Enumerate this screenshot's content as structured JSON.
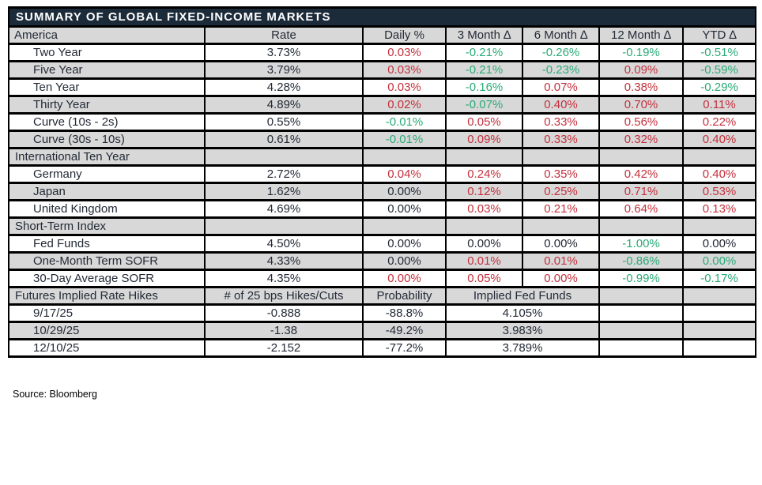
{
  "title": "SUMMARY OF GLOBAL FIXED-INCOME MARKETS",
  "source_note": "Source: Bloomberg",
  "colors": {
    "title_bar_bg": "#1c2b3a",
    "title_text": "#ffffff",
    "row_gray": "#d8d8d8",
    "border": "#000000",
    "text_black": "#232a36",
    "negative_green": "#2aab77",
    "positive_red": "#c5303c"
  },
  "header": [
    "America",
    "Rate",
    "Daily %",
    "3 Month ∆",
    "6 Month ∆",
    "12 Month ∆",
    "YTD ∆"
  ],
  "rows": [
    {
      "type": "data",
      "bg": "w",
      "label": "Two Year",
      "cells": [
        {
          "v": "3.73%",
          "c": "k"
        },
        {
          "v": "0.03%",
          "c": "r"
        },
        {
          "v": "-0.21%",
          "c": "g"
        },
        {
          "v": "-0.26%",
          "c": "g"
        },
        {
          "v": "-0.19%",
          "c": "g"
        },
        {
          "v": "-0.51%",
          "c": "g"
        }
      ]
    },
    {
      "type": "data",
      "bg": "g",
      "label": "Five Year",
      "cells": [
        {
          "v": "3.79%",
          "c": "k"
        },
        {
          "v": "0.03%",
          "c": "r"
        },
        {
          "v": "-0.21%",
          "c": "g"
        },
        {
          "v": "-0.23%",
          "c": "g"
        },
        {
          "v": "0.09%",
          "c": "r"
        },
        {
          "v": "-0.59%",
          "c": "g"
        }
      ]
    },
    {
      "type": "data",
      "bg": "w",
      "label": "Ten Year",
      "cells": [
        {
          "v": "4.28%",
          "c": "k"
        },
        {
          "v": "0.03%",
          "c": "r"
        },
        {
          "v": "-0.16%",
          "c": "g"
        },
        {
          "v": "0.07%",
          "c": "r"
        },
        {
          "v": "0.38%",
          "c": "r"
        },
        {
          "v": "-0.29%",
          "c": "g"
        }
      ]
    },
    {
      "type": "data",
      "bg": "g",
      "label": "Thirty Year",
      "cells": [
        {
          "v": "4.89%",
          "c": "k"
        },
        {
          "v": "0.02%",
          "c": "r"
        },
        {
          "v": "-0.07%",
          "c": "g"
        },
        {
          "v": "0.40%",
          "c": "r"
        },
        {
          "v": "0.70%",
          "c": "r"
        },
        {
          "v": "0.11%",
          "c": "r"
        }
      ]
    },
    {
      "type": "data",
      "bg": "w",
      "label": "Curve (10s - 2s)",
      "cells": [
        {
          "v": "0.55%",
          "c": "k"
        },
        {
          "v": "-0.01%",
          "c": "g"
        },
        {
          "v": "0.05%",
          "c": "r"
        },
        {
          "v": "0.33%",
          "c": "r"
        },
        {
          "v": "0.56%",
          "c": "r"
        },
        {
          "v": "0.22%",
          "c": "r"
        }
      ]
    },
    {
      "type": "data",
      "bg": "g",
      "label": "Curve (30s - 10s)",
      "cells": [
        {
          "v": "0.61%",
          "c": "k"
        },
        {
          "v": "-0.01%",
          "c": "g"
        },
        {
          "v": "0.09%",
          "c": "r"
        },
        {
          "v": "0.33%",
          "c": "r"
        },
        {
          "v": "0.32%",
          "c": "r"
        },
        {
          "v": "0.40%",
          "c": "r"
        }
      ]
    },
    {
      "type": "section",
      "bg": "g",
      "label": "International Ten Year",
      "cells": [
        {
          "v": "",
          "c": "k"
        },
        {
          "v": "",
          "c": "k"
        },
        {
          "v": "",
          "c": "k"
        },
        {
          "v": "",
          "c": "k"
        },
        {
          "v": "",
          "c": "k"
        },
        {
          "v": "",
          "c": "k"
        }
      ]
    },
    {
      "type": "data",
      "bg": "w",
      "label": "Germany",
      "cells": [
        {
          "v": "2.72%",
          "c": "k"
        },
        {
          "v": "0.04%",
          "c": "r"
        },
        {
          "v": "0.24%",
          "c": "r"
        },
        {
          "v": "0.35%",
          "c": "r"
        },
        {
          "v": "0.42%",
          "c": "r"
        },
        {
          "v": "0.40%",
          "c": "r"
        }
      ]
    },
    {
      "type": "data",
      "bg": "g",
      "label": "Japan",
      "cells": [
        {
          "v": "1.62%",
          "c": "k"
        },
        {
          "v": "0.00%",
          "c": "k"
        },
        {
          "v": "0.12%",
          "c": "r"
        },
        {
          "v": "0.25%",
          "c": "r"
        },
        {
          "v": "0.71%",
          "c": "r"
        },
        {
          "v": "0.53%",
          "c": "r"
        }
      ]
    },
    {
      "type": "data",
      "bg": "w",
      "label": "United Kingdom",
      "cells": [
        {
          "v": "4.69%",
          "c": "k"
        },
        {
          "v": "0.00%",
          "c": "k"
        },
        {
          "v": "0.03%",
          "c": "r"
        },
        {
          "v": "0.21%",
          "c": "r"
        },
        {
          "v": "0.64%",
          "c": "r"
        },
        {
          "v": "0.13%",
          "c": "r"
        }
      ]
    },
    {
      "type": "section",
      "bg": "g",
      "label": "Short-Term Index",
      "cells": [
        {
          "v": "",
          "c": "k"
        },
        {
          "v": "",
          "c": "k"
        },
        {
          "v": "",
          "c": "k"
        },
        {
          "v": "",
          "c": "k"
        },
        {
          "v": "",
          "c": "k"
        },
        {
          "v": "",
          "c": "k"
        }
      ]
    },
    {
      "type": "data",
      "bg": "w",
      "label": "Fed Funds",
      "cells": [
        {
          "v": "4.50%",
          "c": "k"
        },
        {
          "v": "0.00%",
          "c": "k"
        },
        {
          "v": "0.00%",
          "c": "k"
        },
        {
          "v": "0.00%",
          "c": "k"
        },
        {
          "v": "-1.00%",
          "c": "g"
        },
        {
          "v": "0.00%",
          "c": "k"
        }
      ]
    },
    {
      "type": "data",
      "bg": "g",
      "label": "One-Month Term SOFR",
      "cells": [
        {
          "v": "4.33%",
          "c": "k"
        },
        {
          "v": "0.00%",
          "c": "k"
        },
        {
          "v": "0.01%",
          "c": "r"
        },
        {
          "v": "0.01%",
          "c": "r"
        },
        {
          "v": "-0.86%",
          "c": "g"
        },
        {
          "v": "0.00%",
          "c": "g"
        }
      ]
    },
    {
      "type": "data",
      "bg": "w",
      "label": "30-Day Average SOFR",
      "cells": [
        {
          "v": "4.35%",
          "c": "k"
        },
        {
          "v": "0.00%",
          "c": "r"
        },
        {
          "v": "0.05%",
          "c": "r"
        },
        {
          "v": "0.00%",
          "c": "r"
        },
        {
          "v": "-0.99%",
          "c": "g"
        },
        {
          "v": "-0.17%",
          "c": "g"
        }
      ]
    },
    {
      "type": "futures-header",
      "bg": "g",
      "label": "Futures Implied Rate Hikes",
      "cells": [
        {
          "v": "# of 25 bps Hikes/Cuts",
          "c": "k"
        },
        {
          "v": "Probability",
          "c": "k"
        },
        {
          "v": "Implied Fed Funds",
          "c": "k",
          "span": 2
        },
        {
          "v": "",
          "c": "k"
        },
        {
          "v": "",
          "c": "k"
        }
      ]
    },
    {
      "type": "futures-data",
      "bg": "w",
      "label": "9/17/25",
      "cells": [
        {
          "v": "-0.888",
          "c": "k"
        },
        {
          "v": "-88.8%",
          "c": "k"
        },
        {
          "v": "4.105%",
          "c": "k",
          "span": 2
        },
        {
          "v": "",
          "c": "k"
        },
        {
          "v": "",
          "c": "k"
        }
      ]
    },
    {
      "type": "futures-data",
      "bg": "g",
      "label": "10/29/25",
      "cells": [
        {
          "v": "-1.38",
          "c": "k"
        },
        {
          "v": "-49.2%",
          "c": "k"
        },
        {
          "v": "3.983%",
          "c": "k",
          "span": 2
        },
        {
          "v": "",
          "c": "k"
        },
        {
          "v": "",
          "c": "k"
        }
      ]
    },
    {
      "type": "futures-data",
      "bg": "w",
      "label": "12/10/25",
      "cells": [
        {
          "v": "-2.152",
          "c": "k"
        },
        {
          "v": "-77.2%",
          "c": "k"
        },
        {
          "v": "3.789%",
          "c": "k",
          "span": 2
        },
        {
          "v": "",
          "c": "k"
        },
        {
          "v": "",
          "c": "k"
        }
      ]
    }
  ]
}
